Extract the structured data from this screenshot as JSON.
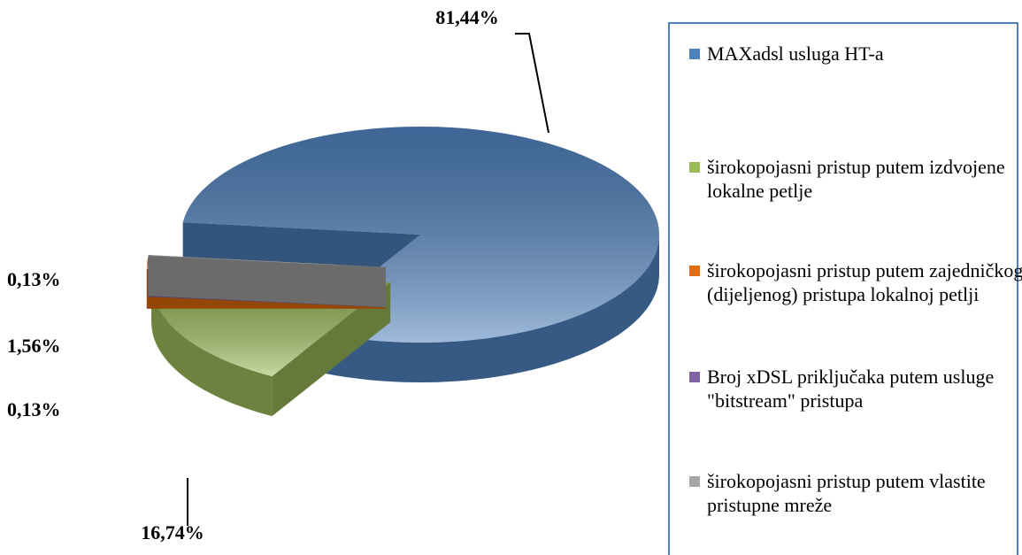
{
  "chart_data": {
    "type": "pie3d",
    "categories": [
      "MAXadsl usluga HT-a",
      "širokopojasni pristup putem izdvojene lokalne petlje",
      "širokopojasni pristup putem zajedničkog (dijeljenog) pristupa lokalnoj petlji",
      "Broj xDSL priključaka putem usluge \"bitstream\" pristupa",
      "širokopojasni pristup putem vlastite pristupne mreže"
    ],
    "values": [
      81.44,
      16.74,
      1.56,
      0.13,
      0.13
    ],
    "value_labels": [
      "81,44%",
      "16,74%",
      "1,56%",
      "0,13%",
      "0,13%"
    ],
    "colors": [
      "#4f81bd",
      "#9bbb59",
      "#e46c0a",
      "#8064a2",
      "#a5a5a5"
    ],
    "legend": "right"
  }
}
